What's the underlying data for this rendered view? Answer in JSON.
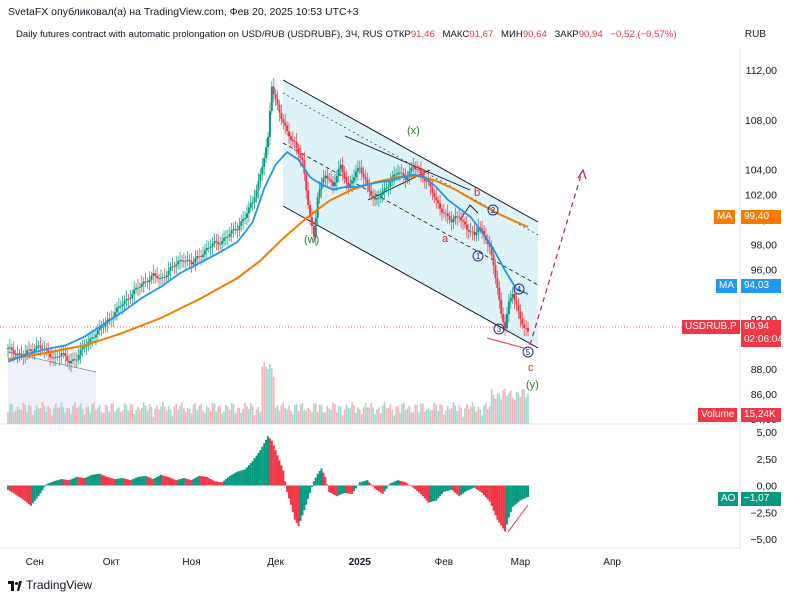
{
  "header": {
    "text": "SvetaFX опубликовал(а) на TradingView.com, Фев 20, 2025 10:53 UTC+3"
  },
  "instrument": {
    "title": "Daily futures contract with automatic prolongation on USD/RUB (USDRUBF), 3Ч, RUS",
    "open_label": "ОТКР",
    "open": "91,46",
    "high_label": "МАКС",
    "high": "91,67",
    "low_label": "МИН",
    "low": "90,64",
    "close_label": "ЗАКР",
    "close": "90,94",
    "change": "−0,52 (−0,57%)",
    "currency": "RUB"
  },
  "colors": {
    "up": "#089981",
    "down": "#f23645",
    "ma_fast": "#2196f3",
    "ma_slow": "#f57c00",
    "channel": "#d9f2f7",
    "ao_up": "#089981",
    "ao_down": "#f23645"
  },
  "tags": {
    "ma_slow": {
      "label": "MA",
      "value": "99,40"
    },
    "ma_fast": {
      "label": "MA",
      "value": "94,03"
    },
    "price": {
      "label": "USDRUB.P",
      "value": "90,94",
      "timer": "02:06:04"
    },
    "volume": {
      "label": "Volume",
      "value": "15,24K"
    },
    "ao": {
      "label": "AO",
      "value": "−1,07"
    }
  },
  "wave_labels": {
    "x": "(x)",
    "w": "(w)",
    "y": "(y)",
    "a": "a",
    "b": "b",
    "c": "c",
    "n1": "1",
    "n2": "2",
    "n3": "3",
    "n4": "4",
    "n5": "5"
  },
  "chart_data": {
    "type": "candlestick",
    "title": "",
    "timeframe": "3Ч",
    "x_ticks": [
      "Сен",
      "Окт",
      "Ноя",
      "Дек",
      "2025",
      "Фев",
      "Мар",
      "Апр"
    ],
    "y_ticks": [
      "112,00",
      "108,00",
      "104,00",
      "102,00",
      "100,00",
      "98,00",
      "96,00",
      "92,00",
      "88,00",
      "86,00",
      "84,00"
    ],
    "ylim": [
      84,
      113
    ],
    "ao_ticks": [
      "5,00",
      "2,50",
      "0,00",
      "−2,50",
      "−5,00"
    ],
    "ao_ylim": [
      -5.6,
      5.2
    ],
    "price_path": [
      [
        0,
        89.6
      ],
      [
        2,
        89.3
      ],
      [
        4,
        89.1
      ],
      [
        6,
        89.5
      ],
      [
        8,
        89.9
      ],
      [
        10,
        89.3
      ],
      [
        12,
        88.9
      ],
      [
        14,
        89.2
      ],
      [
        16,
        88.6
      ],
      [
        18,
        88.9
      ],
      [
        20,
        89.8
      ],
      [
        22,
        90.6
      ],
      [
        24,
        91.1
      ],
      [
        26,
        91.9
      ],
      [
        28,
        92.5
      ],
      [
        30,
        93.3
      ],
      [
        32,
        93.9
      ],
      [
        34,
        94.5
      ],
      [
        36,
        95.1
      ],
      [
        38,
        95.5
      ],
      [
        40,
        95.2
      ],
      [
        42,
        95.9
      ],
      [
        44,
        96.4
      ],
      [
        46,
        96.9
      ],
      [
        48,
        96.4
      ],
      [
        50,
        97.1
      ],
      [
        52,
        97.6
      ],
      [
        54,
        98.1
      ],
      [
        56,
        98.3
      ],
      [
        58,
        98.8
      ],
      [
        60,
        99.4
      ],
      [
        62,
        100.2
      ],
      [
        64,
        101.4
      ],
      [
        66,
        103.6
      ],
      [
        68,
        106.4
      ],
      [
        69,
        110.8
      ],
      [
        71,
        108.6
      ],
      [
        73,
        106.9
      ],
      [
        75,
        106.2
      ],
      [
        77,
        104.6
      ],
      [
        78,
        102.3
      ],
      [
        79,
        100.3
      ],
      [
        80,
        98.6
      ],
      [
        81,
        101.9
      ],
      [
        83,
        103.6
      ],
      [
        85,
        102.8
      ],
      [
        87,
        104.2
      ],
      [
        89,
        102.6
      ],
      [
        90,
        103.3
      ],
      [
        92,
        104.1
      ],
      [
        94,
        102.8
      ],
      [
        96,
        101.4
      ],
      [
        98,
        102.2
      ],
      [
        100,
        103.1
      ],
      [
        102,
        103.8
      ],
      [
        104,
        103.4
      ],
      [
        106,
        104.2
      ],
      [
        108,
        103.7
      ],
      [
        110,
        102.9
      ],
      [
        112,
        101.4
      ],
      [
        114,
        100.6
      ],
      [
        116,
        99.8
      ],
      [
        118,
        100.4
      ],
      [
        120,
        99.2
      ],
      [
        122,
        98.7
      ],
      [
        123,
        99.6
      ],
      [
        125,
        98.4
      ],
      [
        126,
        97.6
      ],
      [
        127,
        96.4
      ],
      [
        128,
        94.6
      ],
      [
        129,
        92.4
      ],
      [
        130,
        91.3
      ],
      [
        131,
        93.2
      ],
      [
        132,
        94.2
      ],
      [
        133,
        93.1
      ],
      [
        134,
        92.1
      ],
      [
        135,
        91.2
      ],
      [
        136,
        90.9
      ]
    ],
    "ma_fast": [
      [
        0,
        88.6
      ],
      [
        5,
        89.2
      ],
      [
        10,
        89.6
      ],
      [
        15,
        89.9
      ],
      [
        20,
        90.6
      ],
      [
        25,
        91.6
      ],
      [
        30,
        92.6
      ],
      [
        35,
        93.7
      ],
      [
        40,
        94.6
      ],
      [
        45,
        95.7
      ],
      [
        50,
        96.5
      ],
      [
        55,
        97.3
      ],
      [
        60,
        98.2
      ],
      [
        64,
        99.8
      ],
      [
        67,
        102.5
      ],
      [
        70,
        104.4
      ],
      [
        73,
        105.4
      ],
      [
        76,
        104.8
      ],
      [
        79,
        103.4
      ],
      [
        82,
        102.8
      ],
      [
        85,
        102.4
      ],
      [
        88,
        102.6
      ],
      [
        91,
        102.6
      ],
      [
        94,
        102.8
      ],
      [
        97,
        103.0
      ],
      [
        100,
        103.1
      ],
      [
        103,
        103.4
      ],
      [
        106,
        103.6
      ],
      [
        109,
        103.4
      ],
      [
        112,
        102.6
      ],
      [
        115,
        101.6
      ],
      [
        118,
        100.9
      ],
      [
        121,
        100.2
      ],
      [
        124,
        99.0
      ],
      [
        127,
        97.6
      ],
      [
        130,
        95.9
      ],
      [
        133,
        94.4
      ],
      [
        136,
        94.03
      ]
    ],
    "ma_slow": [
      [
        0,
        88.8
      ],
      [
        10,
        89.3
      ],
      [
        20,
        89.9
      ],
      [
        30,
        90.9
      ],
      [
        40,
        92.1
      ],
      [
        50,
        93.6
      ],
      [
        60,
        95.3
      ],
      [
        66,
        96.7
      ],
      [
        72,
        98.5
      ],
      [
        78,
        100.1
      ],
      [
        84,
        101.5
      ],
      [
        90,
        102.4
      ],
      [
        96,
        103.0
      ],
      [
        102,
        103.4
      ],
      [
        107,
        103.5
      ],
      [
        112,
        103.1
      ],
      [
        117,
        102.4
      ],
      [
        122,
        101.5
      ],
      [
        128,
        100.5
      ],
      [
        133,
        99.8
      ],
      [
        136,
        99.4
      ]
    ],
    "ao": [
      [
        0,
        -0.4
      ],
      [
        4,
        -1.3
      ],
      [
        6,
        -1.9
      ],
      [
        8,
        -1.0
      ],
      [
        10,
        0.1
      ],
      [
        12,
        0.4
      ],
      [
        14,
        0.6
      ],
      [
        16,
        0.5
      ],
      [
        18,
        0.8
      ],
      [
        20,
        0.7
      ],
      [
        22,
        1.0
      ],
      [
        24,
        1.1
      ],
      [
        26,
        0.8
      ],
      [
        28,
        0.6
      ],
      [
        30,
        0.7
      ],
      [
        32,
        0.5
      ],
      [
        34,
        0.8
      ],
      [
        36,
        0.9
      ],
      [
        38,
        0.6
      ],
      [
        40,
        1.0
      ],
      [
        42,
        0.8
      ],
      [
        44,
        0.5
      ],
      [
        46,
        0.7
      ],
      [
        48,
        0.5
      ],
      [
        50,
        0.9
      ],
      [
        52,
        0.8
      ],
      [
        54,
        0.4
      ],
      [
        56,
        0.3
      ],
      [
        58,
        0.9
      ],
      [
        60,
        1.3
      ],
      [
        62,
        1.5
      ],
      [
        64,
        2.3
      ],
      [
        66,
        3.3
      ],
      [
        68,
        4.6
      ],
      [
        69,
        4.2
      ],
      [
        70,
        3.3
      ],
      [
        72,
        1.4
      ],
      [
        73,
        -0.6
      ],
      [
        74,
        -1.8
      ],
      [
        75,
        -3.2
      ],
      [
        76,
        -3.8
      ],
      [
        77,
        -2.8
      ],
      [
        78,
        -1.8
      ],
      [
        80,
        0.4
      ],
      [
        81,
        1.1
      ],
      [
        82,
        1.6
      ],
      [
        83,
        0.8
      ],
      [
        84,
        -0.6
      ],
      [
        86,
        -1.0
      ],
      [
        88,
        -0.7
      ],
      [
        90,
        -0.8
      ],
      [
        92,
        0.3
      ],
      [
        94,
        0.5
      ],
      [
        96,
        -0.3
      ],
      [
        98,
        -0.8
      ],
      [
        100,
        0.2
      ],
      [
        102,
        0.5
      ],
      [
        104,
        0.3
      ],
      [
        106,
        -0.2
      ],
      [
        108,
        -0.8
      ],
      [
        110,
        -1.6
      ],
      [
        112,
        -1.4
      ],
      [
        114,
        -0.6
      ],
      [
        116,
        -0.4
      ],
      [
        118,
        -1.0
      ],
      [
        120,
        -0.5
      ],
      [
        122,
        -0.2
      ],
      [
        124,
        -0.7
      ],
      [
        126,
        -1.5
      ],
      [
        128,
        -3.2
      ],
      [
        130,
        -4.3
      ],
      [
        131,
        -3.0
      ],
      [
        132,
        -2.0
      ],
      [
        134,
        -1.4
      ],
      [
        136,
        -1.07
      ]
    ]
  }
}
